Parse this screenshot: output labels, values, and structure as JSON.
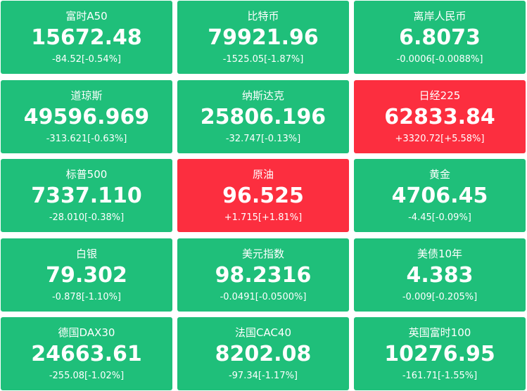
{
  "tiles": [
    {
      "name": "富时A50",
      "price": "15672.48",
      "change": "-84.52[-0.54%]",
      "color": "#1fbf7a"
    },
    {
      "name": "比特币",
      "price": "79921.96",
      "change": "-1525.05[-1.87%]",
      "color": "#1fbf7a"
    },
    {
      "name": "离岸人民币",
      "price": "6.8073",
      "change": "-0.0006[-0.0088%]",
      "color": "#1fbf7a"
    },
    {
      "name": "道琼斯",
      "price": "49596.969",
      "change": "-313.621[-0.63%]",
      "color": "#1fbf7a"
    },
    {
      "name": "纳斯达克",
      "price": "25806.196",
      "change": "-32.747[-0.13%]",
      "color": "#1fbf7a"
    },
    {
      "name": "日经225",
      "price": "62833.84",
      "change": "+3320.72[+5.58%]",
      "color": "#fc2e3f"
    },
    {
      "name": "标普500",
      "price": "7337.110",
      "change": "-28.010[-0.38%]",
      "color": "#1fbf7a"
    },
    {
      "name": "原油",
      "price": "96.525",
      "change": "+1.715[+1.81%]",
      "color": "#fc2e3f"
    },
    {
      "name": "黄金",
      "price": "4706.45",
      "change": "-4.45[-0.09%]",
      "color": "#1fbf7a"
    },
    {
      "name": "白银",
      "price": "79.302",
      "change": "-0.878[-1.10%]",
      "color": "#1fbf7a"
    },
    {
      "name": "美元指数",
      "price": "98.2316",
      "change": "-0.0491[-0.0500%]",
      "color": "#1fbf7a"
    },
    {
      "name": "美债10年",
      "price": "4.383",
      "change": "-0.009[-0.205%]",
      "color": "#1fbf7a"
    },
    {
      "name": "德国DAX30",
      "price": "24663.61",
      "change": "-255.08[-1.02%]",
      "color": "#1fbf7a"
    },
    {
      "name": "法国CAC40",
      "price": "8202.08",
      "change": "-97.34[-1.17%]",
      "color": "#1fbf7a"
    },
    {
      "name": "英国富时100",
      "price": "10276.95",
      "change": "-161.71[-1.55%]",
      "color": "#1fbf7a"
    }
  ]
}
